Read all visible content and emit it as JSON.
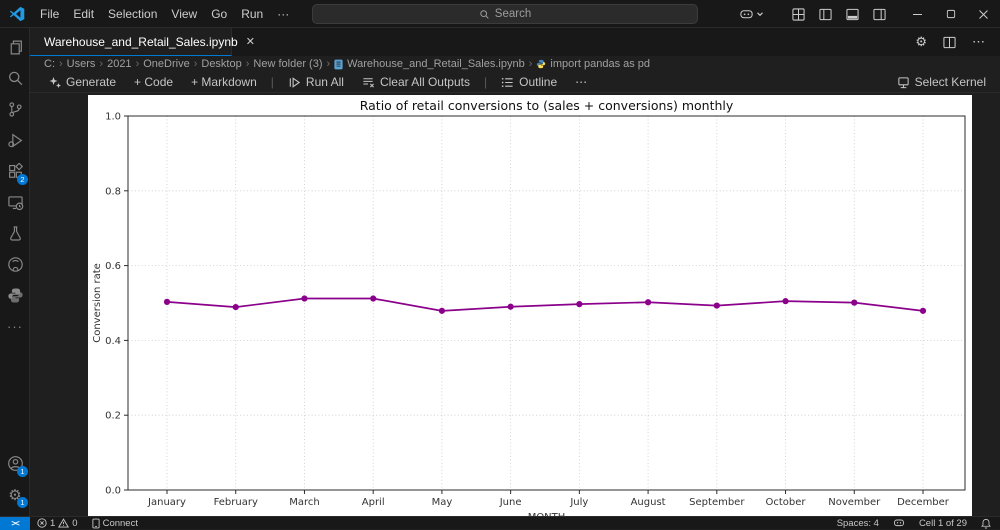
{
  "colors": {
    "accent_blue": "#0078d4",
    "chart_line": "#8B008B",
    "notebook_icon": "#59a2d4"
  },
  "title_bar": {
    "menus": [
      "File",
      "Edit",
      "Selection",
      "View",
      "Go",
      "Run"
    ],
    "more_label": "···",
    "search_placeholder": "Search"
  },
  "tab_bar": {
    "tab_label": "Warehouse_and_Retail_Sales.ipynb"
  },
  "breadcrumb": {
    "items": [
      "C:",
      "Users",
      "2021",
      "OneDrive",
      "Desktop",
      "New folder (3)",
      "Warehouse_and_Retail_Sales.ipynb",
      "import pandas as pd"
    ]
  },
  "notebook_toolbar": {
    "generate": "Generate",
    "code": "+ Code",
    "markdown": "+ Markdown",
    "run_all": "Run All",
    "clear_all_outputs": "Clear All Outputs",
    "outline": "Outline",
    "more": "⋯",
    "select_kernel": "Select Kernel"
  },
  "activity_bar": {
    "extensions_badge": "2",
    "account_badge": "1",
    "settings_badge": "1"
  },
  "status_bar": {
    "errors": "1",
    "warnings": "0",
    "connect": "Connect",
    "spaces": "Spaces: 4",
    "cell": "Cell 1 of 29"
  },
  "chart_data": {
    "type": "line",
    "title": "Ratio of retail conversions to (sales + conversions) monthly",
    "xlabel": "MONTH",
    "ylabel": "Conversion rate",
    "categories": [
      "January",
      "February",
      "March",
      "April",
      "May",
      "June",
      "July",
      "August",
      "September",
      "October",
      "November",
      "December"
    ],
    "values": [
      0.503,
      0.489,
      0.512,
      0.512,
      0.479,
      0.49,
      0.497,
      0.502,
      0.493,
      0.505,
      0.501,
      0.479
    ],
    "ylim": [
      0.0,
      1.0
    ],
    "yticks": [
      0.0,
      0.2,
      0.4,
      0.6,
      0.8,
      1.0
    ],
    "grid": true,
    "grid_style": "dotted",
    "legend": null,
    "line_color": "#8B008B",
    "marker": "o"
  }
}
